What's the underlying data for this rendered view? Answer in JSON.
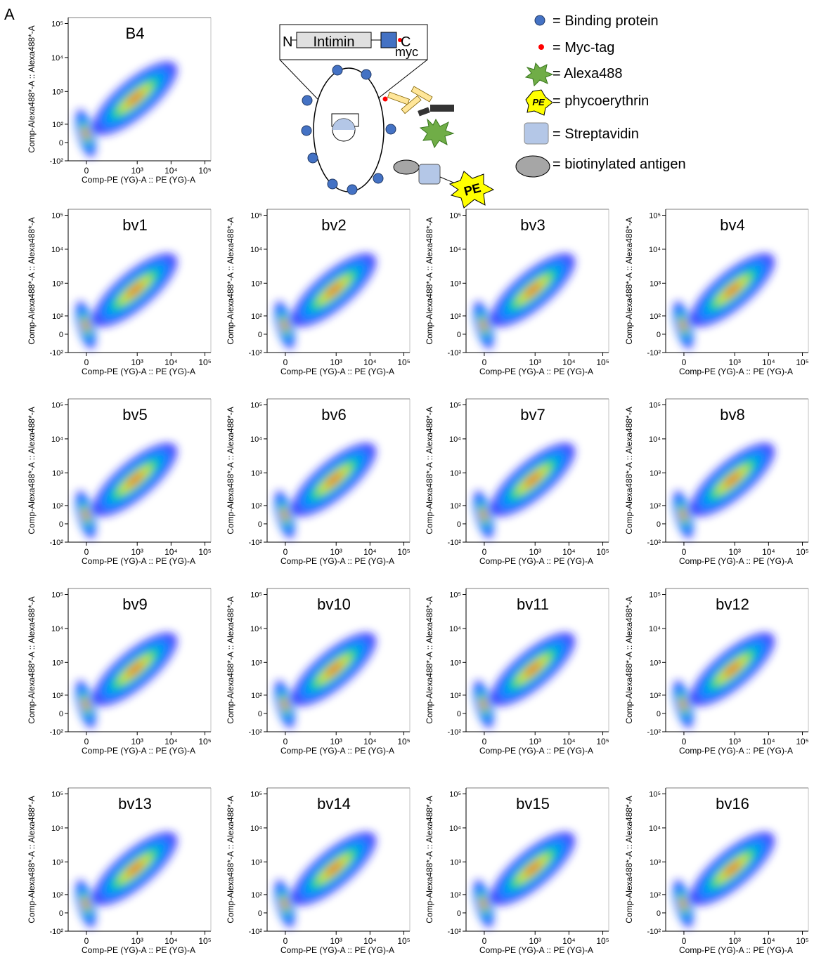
{
  "panel_label": "A",
  "axes": {
    "xlabel": "Comp-PE (YG)-A :: PE (YG)-A",
    "ylabel": "Comp-Alexa488*-A :: Alexa488*-A",
    "xlim": [
      -100,
      150000
    ],
    "ylim": [
      -100,
      150000
    ],
    "xticks": [
      0,
      {
        "value": 1000,
        "label": "10³"
      },
      {
        "value": 10000,
        "label": "10⁴"
      },
      {
        "value": 100000,
        "label": "10⁵"
      }
    ],
    "yticks": [
      {
        "value": 100000,
        "label": "10⁵"
      },
      {
        "value": 10000,
        "label": "10⁴"
      },
      {
        "value": 1000,
        "label": "10³"
      },
      {
        "value": 100,
        "label": "10²"
      },
      0,
      {
        "value": -100,
        "label": "-10²"
      }
    ]
  },
  "panels": [
    "B4",
    "bv1",
    "bv2",
    "bv3",
    "bv4",
    "bv5",
    "bv6",
    "bv7",
    "bv8",
    "bv9",
    "bv10",
    "bv11",
    "bv12",
    "bv13",
    "bv14",
    "bv15",
    "bv16"
  ],
  "diagram": {
    "n_term": "N",
    "domain": "Intimin",
    "c_term": "C",
    "tag": "myc",
    "pe": "PE"
  },
  "legend": [
    {
      "label": "= Binding protein"
    },
    {
      "label": "= Myc-tag"
    },
    {
      "label": "= Alexa488"
    },
    {
      "label": "= phycoerythrin",
      "icon": "PE"
    },
    {
      "label": "= Streptavidin"
    },
    {
      "label": "= biotinylated antigen"
    }
  ]
}
